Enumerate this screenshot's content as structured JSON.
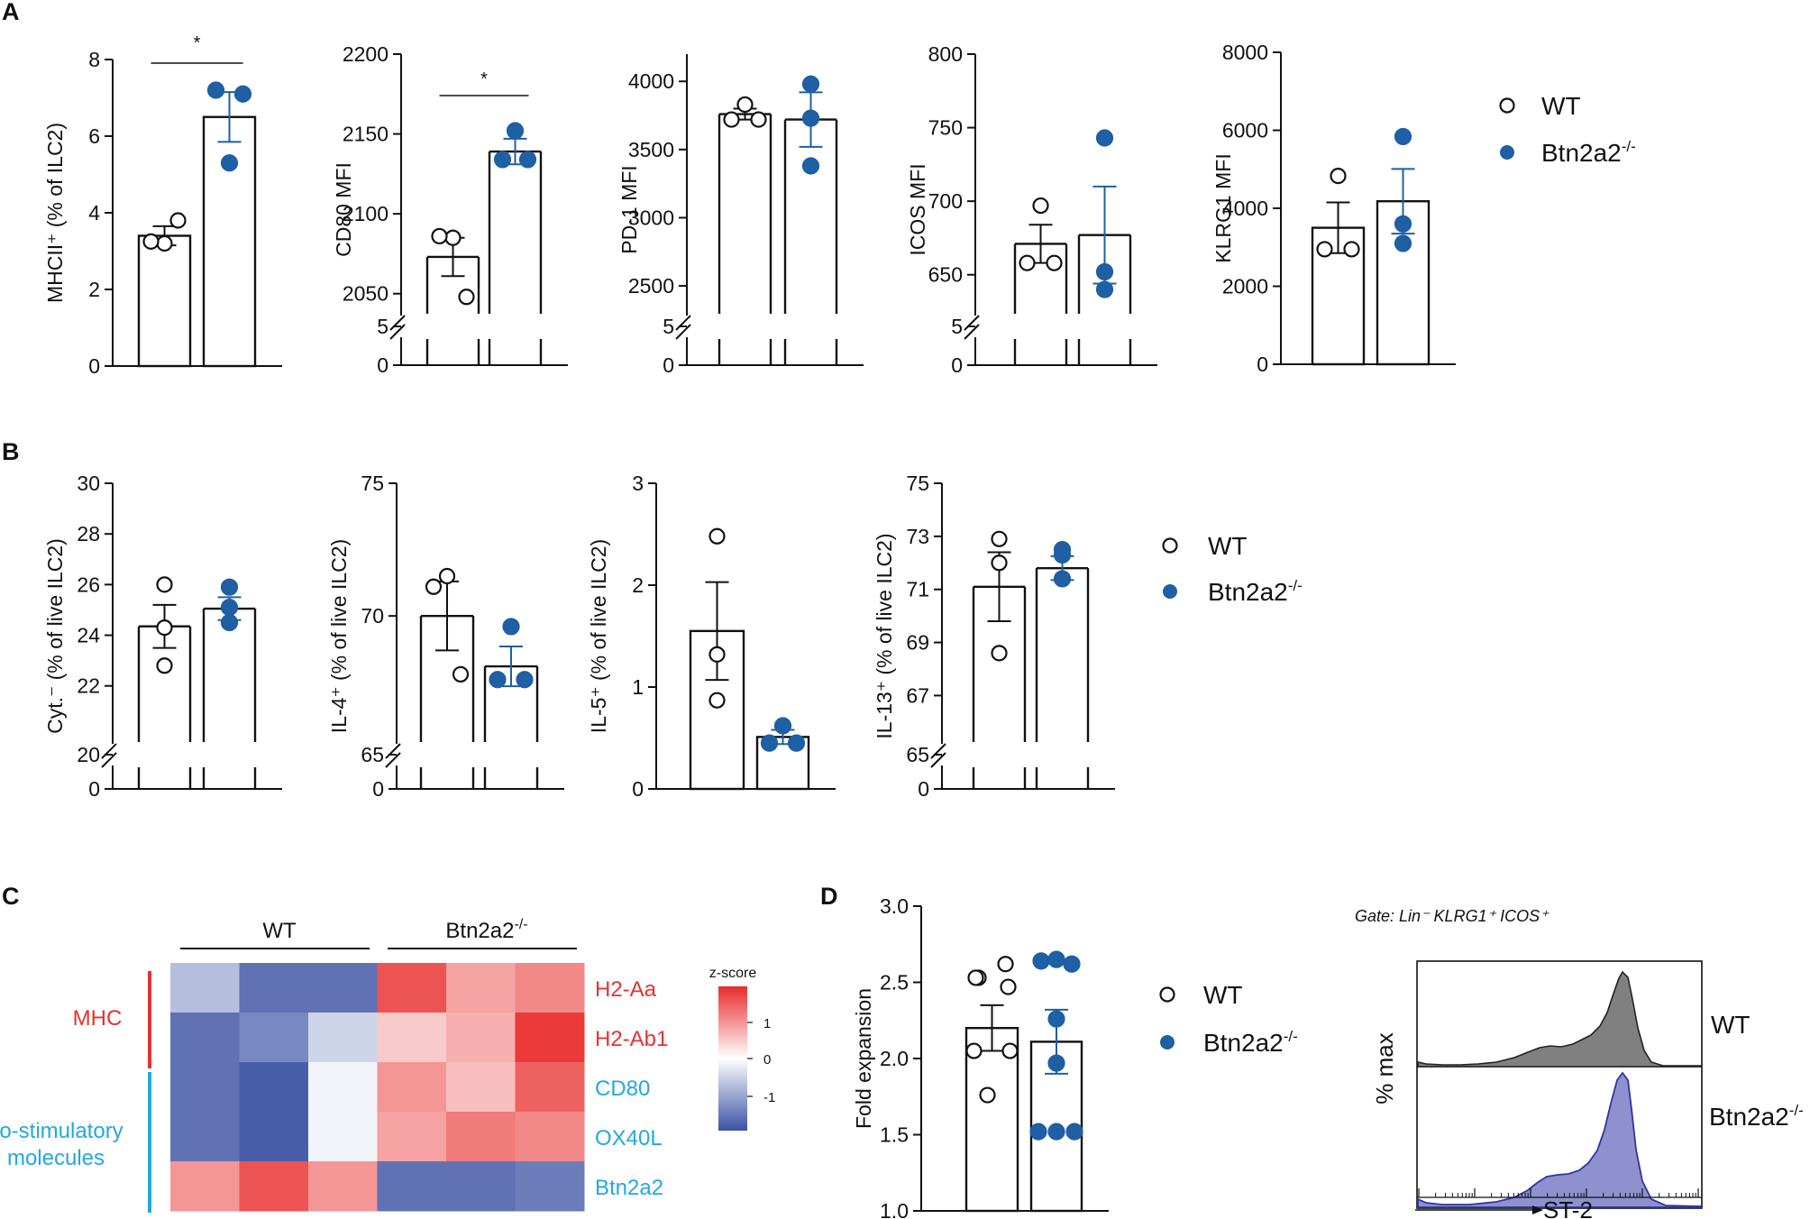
{
  "colors": {
    "wt_face": "#ffffff",
    "ko_face": "#1f5fa3",
    "ko_err": "#1f5fa3",
    "red": "#e8312f",
    "cyan": "#22a8e1",
    "hm_low": "#3b52a3",
    "hm_mid": "#ffffff",
    "hm_high": "#e82c2c",
    "wt_hist": "#808080",
    "ko_hist": "#8f90cd"
  },
  "panels": {
    "a": "A",
    "b": "B",
    "c": "C",
    "d": "D"
  },
  "legend": {
    "wt": "WT",
    "ko_base": "Btn2a2",
    "ko_sup": "-/-"
  },
  "chart_data": [
    {
      "id": "a1",
      "type": "bar",
      "ylabel": "MHCII⁺ (% of ILC2)",
      "yticks": [
        "0",
        "2",
        "4",
        "6",
        "8"
      ],
      "ylim": [
        0,
        8
      ],
      "categories": [
        "WT",
        "Btn2a2-/-"
      ],
      "series": [
        {
          "name": "WT",
          "mean": 3.4,
          "sem": 0.25,
          "points": [
            3.2,
            3.25,
            3.8
          ]
        },
        {
          "name": "Btn2a2-/-",
          "mean": 6.5,
          "sem": 0.65,
          "points": [
            7.2,
            7.1,
            5.3
          ]
        }
      ],
      "significance": "*"
    },
    {
      "id": "a2",
      "type": "bar",
      "ylabel": "CD80 MFI",
      "yticks": [
        "0",
        "5",
        "2050",
        "2100",
        "2150",
        "2200"
      ],
      "ylim": [
        2025,
        2200
      ],
      "axis_break": true,
      "categories": [
        "WT",
        "Btn2a2-/-"
      ],
      "series": [
        {
          "name": "WT",
          "mean": 2073,
          "sem": 12,
          "points": [
            2085,
            2086,
            2048
          ]
        },
        {
          "name": "Btn2a2-/-",
          "mean": 2139,
          "sem": 8,
          "points": [
            2152,
            2134,
            2134
          ]
        }
      ],
      "significance": "*"
    },
    {
      "id": "a3",
      "type": "bar",
      "ylabel": "PD-1 MFI",
      "yticks": [
        "0",
        "5",
        "2500",
        "3000",
        "3500",
        "4000"
      ],
      "ylim": [
        2150,
        4200
      ],
      "axis_break": true,
      "categories": [
        "WT",
        "Btn2a2-/-"
      ],
      "series": [
        {
          "name": "WT",
          "mean": 3760,
          "sem": 40,
          "points": [
            3830,
            3720,
            3720
          ]
        },
        {
          "name": "Btn2a2-/-",
          "mean": 3720,
          "sem": 200,
          "points": [
            3980,
            3730,
            3380
          ]
        }
      ]
    },
    {
      "id": "a4",
      "type": "bar",
      "ylabel": "ICOS MFI",
      "yticks": [
        "0",
        "5",
        "650",
        "700",
        "750",
        "800"
      ],
      "ylim": [
        610,
        800
      ],
      "axis_break": true,
      "categories": [
        "WT",
        "Btn2a2-/-"
      ],
      "series": [
        {
          "name": "WT",
          "mean": 671,
          "sem": 13,
          "points": [
            697,
            658,
            658
          ]
        },
        {
          "name": "Btn2a2-/-",
          "mean": 677,
          "sem": 33,
          "points": [
            743,
            652,
            640
          ]
        }
      ]
    },
    {
      "id": "a5",
      "type": "bar",
      "ylabel": "KLRG1 MFI",
      "yticks": [
        "0",
        "2000",
        "4000",
        "6000",
        "8000"
      ],
      "ylim": [
        0,
        8000
      ],
      "categories": [
        "WT",
        "Btn2a2-/-"
      ],
      "series": [
        {
          "name": "WT",
          "mean": 3500,
          "sem": 650,
          "points": [
            4830,
            2950,
            2950
          ]
        },
        {
          "name": "Btn2a2-/-",
          "mean": 4180,
          "sem": 830,
          "points": [
            5840,
            3600,
            3100
          ]
        }
      ]
    },
    {
      "id": "b1",
      "type": "bar",
      "ylabel": "Cyt.⁻ (% of live ILC2)",
      "yticks": [
        "0",
        "20",
        "22",
        "24",
        "26",
        "28",
        "30"
      ],
      "ylim": [
        19,
        30
      ],
      "axis_break": true,
      "categories": [
        "WT",
        "Btn2a2-/-"
      ],
      "series": [
        {
          "name": "WT",
          "mean": 24.35,
          "sem": 0.85,
          "points": [
            26.0,
            24.3,
            22.8
          ]
        },
        {
          "name": "Btn2a2-/-",
          "mean": 25.05,
          "sem": 0.45,
          "points": [
            25.9,
            25.1,
            24.5
          ]
        }
      ]
    },
    {
      "id": "b2",
      "type": "bar",
      "ylabel": "IL-4⁺ (% of live ILC2)",
      "yticks": [
        "0",
        "65",
        "70",
        "75"
      ],
      "ylim": [
        64.5,
        75
      ],
      "axis_break": true,
      "categories": [
        "WT",
        "Btn2a2-/-"
      ],
      "series": [
        {
          "name": "WT",
          "mean": 70.0,
          "sem": 1.3,
          "points": [
            71.5,
            71.1,
            67.8
          ]
        },
        {
          "name": "Btn2a2-/-",
          "mean": 68.1,
          "sem": 0.75,
          "points": [
            69.6,
            67.6,
            67.6
          ]
        }
      ]
    },
    {
      "id": "b3",
      "type": "bar",
      "ylabel": "IL-5⁺ (% of live ILC2)",
      "yticks": [
        "0",
        "1",
        "2",
        "3"
      ],
      "ylim": [
        0,
        3
      ],
      "categories": [
        "WT",
        "Btn2a2-/-"
      ],
      "series": [
        {
          "name": "WT",
          "mean": 1.55,
          "sem": 0.48,
          "points": [
            2.48,
            1.32,
            0.87
          ]
        },
        {
          "name": "Btn2a2-/-",
          "mean": 0.51,
          "sem": 0.07,
          "points": [
            0.62,
            0.45,
            0.45
          ]
        }
      ]
    },
    {
      "id": "b4",
      "type": "bar",
      "ylabel": "IL-13⁺ (% of live ILC2)",
      "yticks": [
        "0",
        "65",
        "67",
        "69",
        "71",
        "73",
        "75"
      ],
      "ylim": [
        64.5,
        75
      ],
      "axis_break": true,
      "categories": [
        "WT",
        "Btn2a2-/-"
      ],
      "series": [
        {
          "name": "WT",
          "mean": 71.1,
          "sem": 1.3,
          "points": [
            72.9,
            72.0,
            68.6
          ]
        },
        {
          "name": "Btn2a2-/-",
          "mean": 71.8,
          "sem": 0.45,
          "points": [
            72.5,
            72.3,
            71.4
          ]
        }
      ]
    },
    {
      "id": "c",
      "type": "heatmap",
      "column_groups": [
        "WT",
        "Btn2a2-/-"
      ],
      "row_groups": [
        "MHC",
        "co-stimulatory molecules"
      ],
      "rows": [
        "H2-Aa",
        "H2-Ab1",
        "CD80",
        "OX40L",
        "Btn2a2"
      ],
      "values": [
        [
          -0.6,
          -1.3,
          -1.3,
          1.3,
          0.7,
          0.9
        ],
        [
          -1.3,
          -1.1,
          -0.4,
          0.4,
          0.6,
          1.5
        ],
        [
          -1.3,
          -1.5,
          -0.1,
          0.8,
          0.5,
          1.2
        ],
        [
          -1.3,
          -1.5,
          -0.1,
          0.7,
          1.0,
          0.9
        ],
        [
          0.8,
          1.3,
          0.8,
          -1.3,
          -1.3,
          -1.2
        ]
      ],
      "legend_title": "z-score",
      "legend_ticks": [
        "1",
        "0",
        "-1"
      ]
    },
    {
      "id": "d",
      "type": "bar",
      "ylabel": "Fold expansion",
      "yticks": [
        "1.0",
        "1.5",
        "2.0",
        "2.5",
        "3.0"
      ],
      "ylim": [
        1.0,
        3.0
      ],
      "categories": [
        "WT",
        "Btn2a2-/-"
      ],
      "series": [
        {
          "name": "WT",
          "mean": 2.2,
          "sem": 0.15,
          "points": [
            2.62,
            2.53,
            2.53,
            2.47,
            2.05,
            2.05,
            1.76
          ]
        },
        {
          "name": "Btn2a2-/-",
          "mean": 2.11,
          "sem": 0.21,
          "points": [
            2.64,
            2.65,
            2.62,
            2.26,
            1.97,
            1.52,
            1.52,
            1.52
          ]
        }
      ]
    },
    {
      "id": "d_hist",
      "type": "area",
      "title": "Gate: Lin⁻ KLRG1⁺ ICOS⁺",
      "ylabel": "% max",
      "xlabel": "ST-2",
      "series": [
        "WT",
        "Btn2a2-/-"
      ]
    }
  ]
}
